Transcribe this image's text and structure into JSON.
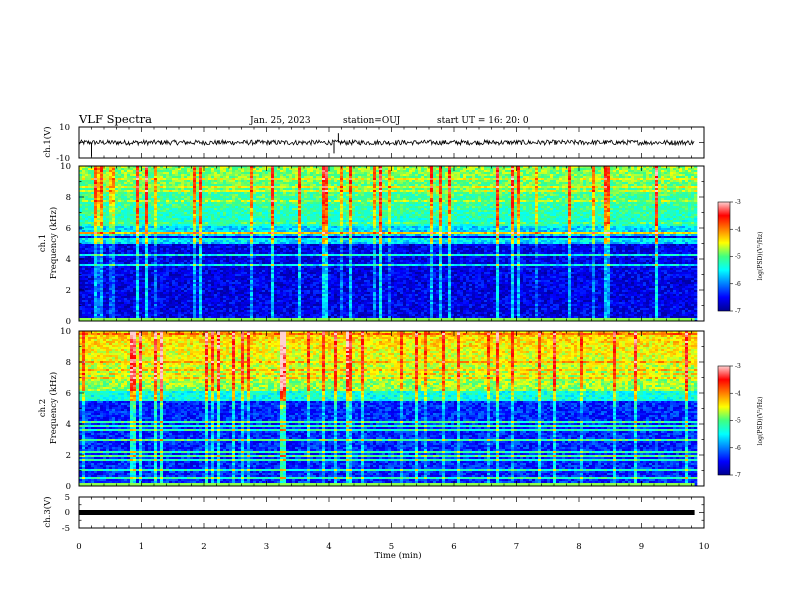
{
  "header": {
    "title": "VLF Spectra",
    "date": "Jan. 25, 2023",
    "station": "station=OUJ",
    "start": "start  UT  =   16: 20: 0"
  },
  "chart_data": [
    {
      "type": "line",
      "ylabel": "ch.1(V)",
      "ylim": [
        -10,
        10
      ],
      "ytick_labels": [
        "10",
        "-10"
      ],
      "xlim": [
        0,
        10
      ],
      "signal_level": 0,
      "spikes": [
        {
          "x": 0.2,
          "y": -9
        },
        {
          "x": 4.08,
          "y": -7
        },
        {
          "x": 4.15,
          "y": 6
        }
      ]
    },
    {
      "type": "heatmap",
      "ylabel": "ch.1\nFrequency (kHz)",
      "ylim": [
        0,
        10
      ],
      "ytick_labels": [
        "0",
        "2",
        "4",
        "6",
        "8",
        "10"
      ],
      "xlim": [
        0,
        10
      ],
      "data_end_min": 9.85,
      "colorbar": {
        "label": "log(PSD)(V²/Hz)",
        "range": [
          -7,
          -3
        ],
        "tick_labels": [
          "-3",
          "-4",
          "-5",
          "-6",
          "-7"
        ]
      }
    },
    {
      "type": "heatmap",
      "ylabel": "ch.2\nFrequency (kHz)",
      "ylim": [
        0,
        10
      ],
      "ytick_labels": [
        "0",
        "2",
        "4",
        "6",
        "8",
        "10"
      ],
      "xlim": [
        0,
        10
      ],
      "data_end_min": 9.85,
      "colorbar": {
        "label": "log(PSD)(V²/Hz)",
        "range": [
          -7,
          -3
        ],
        "tick_labels": [
          "-3",
          "-4",
          "-5",
          "-6",
          "-7"
        ]
      }
    },
    {
      "type": "line",
      "ylabel": "ch.3(V)",
      "ylim": [
        -5,
        5
      ],
      "ytick_labels": [
        "5",
        "0",
        "-5"
      ],
      "xlim": [
        0,
        10
      ],
      "signal_level": 0,
      "xlabel": "Time  (min)",
      "xtick_labels": [
        "0",
        "1",
        "2",
        "3",
        "4",
        "5",
        "6",
        "7",
        "8",
        "9",
        "10"
      ]
    }
  ]
}
